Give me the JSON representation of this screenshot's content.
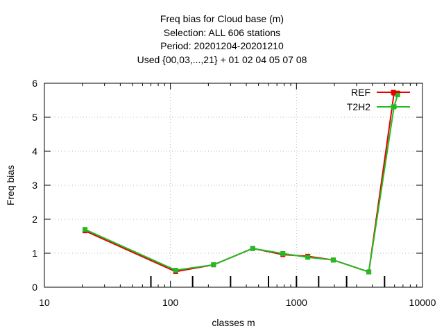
{
  "chart_data": {
    "type": "line",
    "title_lines": [
      "Freq bias  for Cloud base (m)",
      "Selection: ALL    606 stations",
      "Period: 20201204-20201210",
      "Used {00,03,...,21} + 01 02 04 05 07 08"
    ],
    "xlabel": "classes m",
    "ylabel": "Freq bias",
    "xscale": "log",
    "xlim": [
      10,
      10000
    ],
    "ylim": [
      0,
      6
    ],
    "x_ticks": [
      10,
      100,
      1000,
      10000
    ],
    "x_tick_labels": [
      "10",
      "100",
      "1000",
      "10000"
    ],
    "y_ticks": [
      0,
      1,
      2,
      3,
      4,
      5,
      6
    ],
    "y_tick_labels": [
      "0",
      "1",
      "2",
      "3",
      "4",
      "5",
      "6"
    ],
    "grid": true,
    "legend_position": "top-right",
    "series": [
      {
        "name": "REF",
        "color": "#e60000",
        "x": [
          21,
          110,
          220,
          450,
          780,
          1230,
          1960,
          3750,
          5950,
          6350
        ],
        "y": [
          1.66,
          0.46,
          0.66,
          1.14,
          0.96,
          0.91,
          0.8,
          0.45,
          5.71,
          5.71
        ]
      },
      {
        "name": "T2H2",
        "color": "#22bb22",
        "x": [
          21,
          110,
          220,
          450,
          780,
          1230,
          1960,
          3750,
          5950,
          6350
        ],
        "y": [
          1.7,
          0.5,
          0.66,
          1.14,
          0.99,
          0.88,
          0.8,
          0.45,
          5.31,
          5.66
        ]
      }
    ],
    "station_tick_x": [
      70,
      150,
      300,
      600,
      1000,
      1500,
      2500,
      5000
    ]
  }
}
